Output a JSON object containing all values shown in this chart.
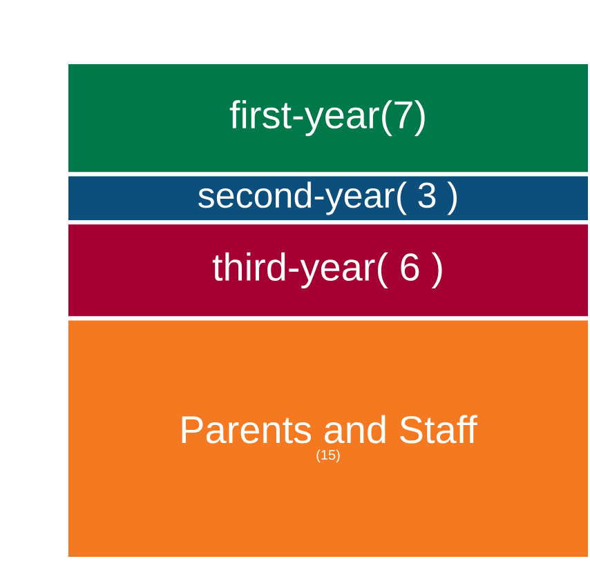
{
  "chart_data": {
    "type": "bar",
    "stacked": true,
    "categories": [
      null
    ],
    "series": [
      {
        "name": "Parents and Staff",
        "color": "#f47920",
        "values": [
          15
        ],
        "value_labels": [
          "(15)"
        ]
      },
      {
        "name": "third-year",
        "color": "#a50034",
        "values": [
          6
        ],
        "value_labels": [
          "( 6 )"
        ]
      },
      {
        "name": "second-year",
        "color": "#0c4f7c",
        "values": [
          3
        ],
        "value_labels": [
          "( 3 )"
        ]
      },
      {
        "name": "first-year",
        "color": "#00794a",
        "values": [
          7
        ],
        "value_labels": [
          "(7)"
        ]
      }
    ]
  }
}
